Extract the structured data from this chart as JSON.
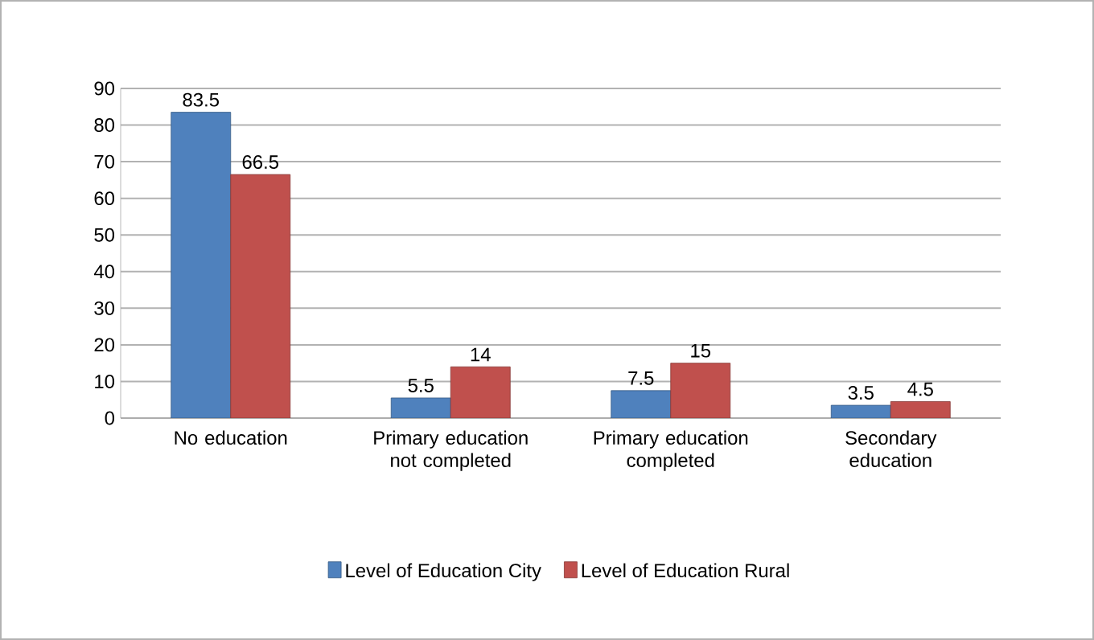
{
  "chart_data": {
    "type": "bar",
    "categories": [
      "No education",
      "Primary education not completed",
      "Primary education completed",
      "Secondary education"
    ],
    "series": [
      {
        "name": "Level of Education City",
        "color": "#4f81bd",
        "values": [
          83.5,
          5.5,
          7.5,
          3.5
        ]
      },
      {
        "name": "Level of Education Rural",
        "color": "#c0504d",
        "values": [
          66.5,
          14,
          15,
          4.5
        ]
      }
    ],
    "ylim": [
      0,
      90
    ],
    "yticks": [
      0,
      10,
      20,
      30,
      40,
      50,
      60,
      70,
      80,
      90
    ],
    "grid": "y",
    "legend": "bottom",
    "data_labels": true
  }
}
